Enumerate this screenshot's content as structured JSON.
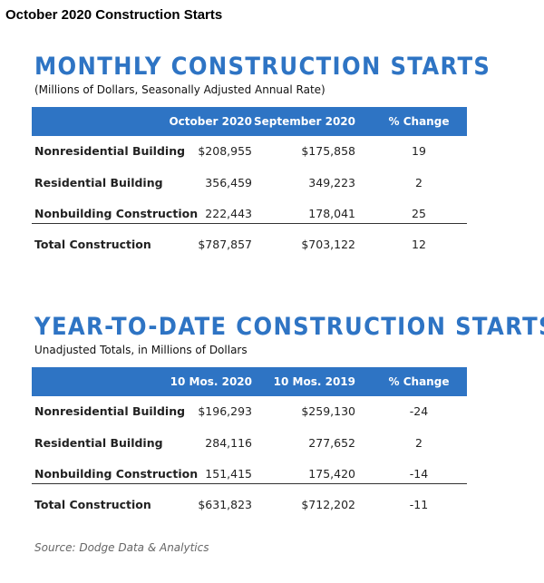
{
  "title": "October 2020 Construction Starts",
  "sections": [
    {
      "heading": "MONTHLY CONSTRUCTION STARTS",
      "subtitle": "(Millions of Dollars, Seasonally Adjusted Annual Rate)",
      "columns": [
        "October 2020",
        "September 2020",
        "% Change"
      ],
      "rows": [
        [
          "Nonresidential Building",
          "$208,955",
          "$175,858",
          "19"
        ],
        [
          "Residential Building",
          "356,459",
          "349,223",
          "2"
        ],
        [
          "Nonbuilding Construction",
          "222,443",
          "178,041",
          "25"
        ],
        [
          "Total Construction",
          "$787,857",
          "$703,122",
          "12"
        ]
      ]
    },
    {
      "heading": "YEAR-TO-DATE CONSTRUCTION STARTS",
      "subtitle": "Unadjusted Totals, in Millions of Dollars",
      "columns": [
        "10 Mos. 2020",
        "10 Mos. 2019",
        "% Change"
      ],
      "rows": [
        [
          "Nonresidential Building",
          "$196,293",
          "$259,130",
          "-24"
        ],
        [
          "Residential Building",
          "284,116",
          "277,652",
          "2"
        ],
        [
          "Nonbuilding Construction",
          "151,415",
          "175,420",
          "-14"
        ],
        [
          "Total Construction",
          "$631,823",
          "$712,202",
          "-11"
        ]
      ]
    }
  ],
  "source": "Source: Dodge Data & Analytics"
}
